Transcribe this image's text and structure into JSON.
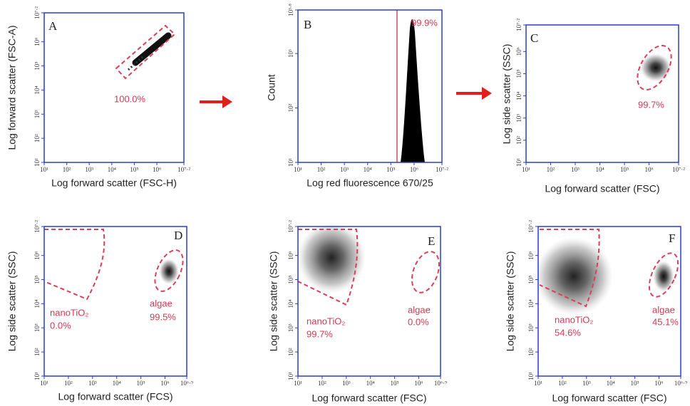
{
  "chart_data": [
    {
      "type": "scatter",
      "title": "A",
      "x_label": "Log forward scatter (FSC-H)",
      "y_label": "Log forward scatter (FSC-A)",
      "log": true,
      "xlim": [
        10,
        15848931.92
      ],
      "ylim": [
        10,
        15848931.92
      ],
      "xticks": [
        {
          "value": 10,
          "label": "10¹"
        },
        {
          "value": 100,
          "label": "10²"
        },
        {
          "value": 1000,
          "label": "10³"
        },
        {
          "value": 10000,
          "label": "10⁴"
        },
        {
          "value": 100000,
          "label": "10⁵"
        },
        {
          "value": 1000000,
          "label": "10⁶"
        },
        {
          "value": 15848931.92,
          "label": "10⁷·²"
        }
      ],
      "yticks": [
        {
          "value": 10,
          "label": "10¹"
        },
        {
          "value": 100,
          "label": "10²"
        },
        {
          "value": 1000,
          "label": "10³"
        },
        {
          "value": 10000,
          "label": "10⁴"
        },
        {
          "value": 100000,
          "label": "10⁵"
        },
        {
          "value": 1000000,
          "label": "10⁶"
        },
        {
          "value": 15848931.92,
          "label": "10⁷·²"
        }
      ],
      "annotations": [
        "100.0%"
      ]
    },
    {
      "type": "histogram",
      "title": "B",
      "x_label": "Log red fluorescence 670/25",
      "y_label": "Count",
      "log": true,
      "xlim": [
        10,
        15848931.92
      ],
      "ylim": [
        10,
        6309.57
      ],
      "xticks": [
        {
          "value": 10,
          "label": "10¹"
        },
        {
          "value": 100,
          "label": "10²"
        },
        {
          "value": 1000,
          "label": "10³"
        },
        {
          "value": 10000,
          "label": "10⁴"
        },
        {
          "value": 100000,
          "label": "10⁵"
        },
        {
          "value": 1000000,
          "label": "10⁶"
        },
        {
          "value": 15848931.92,
          "label": "10⁷·²"
        }
      ],
      "yticks": [
        {
          "value": 10,
          "label": "10¹"
        },
        {
          "value": 100,
          "label": "10²"
        },
        {
          "value": 1000,
          "label": "10³"
        },
        {
          "value": 6309.57,
          "label": "10³·⁸"
        }
      ],
      "annotations": [
        "99.9%"
      ]
    },
    {
      "type": "scatter",
      "title": "C",
      "x_label": "Log forward scatter (FSC)",
      "y_label": "Log side scatter (SSC)",
      "log": true,
      "xlim": [
        10,
        15848931.92
      ],
      "ylim": [
        10,
        15848931.92
      ],
      "xticks": [
        {
          "value": 10,
          "label": "10¹"
        },
        {
          "value": 100,
          "label": "10²"
        },
        {
          "value": 1000,
          "label": "10³"
        },
        {
          "value": 10000,
          "label": "10⁴"
        },
        {
          "value": 100000,
          "label": "10⁵"
        },
        {
          "value": 1000000,
          "label": "10⁶"
        },
        {
          "value": 15848931.92,
          "label": "10⁷·²"
        }
      ],
      "yticks": [
        {
          "value": 10,
          "label": "10¹"
        },
        {
          "value": 100,
          "label": "10²"
        },
        {
          "value": 1000,
          "label": "10³"
        },
        {
          "value": 10000,
          "label": "10⁴"
        },
        {
          "value": 100000,
          "label": "10⁵"
        },
        {
          "value": 1000000,
          "label": "10⁶"
        },
        {
          "value": 15848931.92,
          "label": "10⁷·²"
        }
      ],
      "annotations": [
        "99.7%"
      ]
    },
    {
      "type": "scatter",
      "title": "D",
      "x_label": "Log forward scatter (FCS)",
      "y_label": "Log side scatter (SSC)",
      "log": true,
      "xlim": [
        10,
        7943282.35
      ],
      "ylim": [
        10,
        15848931.92
      ],
      "xticks": [
        {
          "value": 10,
          "label": "10¹"
        },
        {
          "value": 100,
          "label": "10²"
        },
        {
          "value": 1000,
          "label": "10³"
        },
        {
          "value": 10000,
          "label": "10⁴"
        },
        {
          "value": 100000,
          "label": "10⁵"
        },
        {
          "value": 1000000,
          "label": "10⁶"
        },
        {
          "value": 7943282.35,
          "label": "10⁶·⁹"
        }
      ],
      "yticks": [
        {
          "value": 10,
          "label": "10¹"
        },
        {
          "value": 100,
          "label": "10²"
        },
        {
          "value": 1000,
          "label": "10³"
        },
        {
          "value": 10000,
          "label": "10⁴"
        },
        {
          "value": 100000,
          "label": "10⁵"
        },
        {
          "value": 1000000,
          "label": "10⁶"
        },
        {
          "value": 15848931.92,
          "label": "10⁷·²"
        }
      ],
      "annotations": [
        "nanoTiO₂",
        "0.0%",
        "algae",
        "99.5%"
      ]
    },
    {
      "type": "scatter",
      "title": "E",
      "x_label": "Log forward scatter (FSC)",
      "y_label": "Log side scatter (SSC)",
      "log": true,
      "xlim": [
        10,
        7943282.35
      ],
      "ylim": [
        10,
        15848931.92
      ],
      "xticks": [
        {
          "value": 10,
          "label": "10¹"
        },
        {
          "value": 100,
          "label": "10²"
        },
        {
          "value": 1000,
          "label": "10³"
        },
        {
          "value": 10000,
          "label": "10⁴"
        },
        {
          "value": 100000,
          "label": "10⁵"
        },
        {
          "value": 1000000,
          "label": "10⁶"
        },
        {
          "value": 7943282.35,
          "label": "10⁶·⁹"
        }
      ],
      "yticks": [
        {
          "value": 10,
          "label": "10¹"
        },
        {
          "value": 100,
          "label": "10²"
        },
        {
          "value": 1000,
          "label": "10³"
        },
        {
          "value": 10000,
          "label": "10⁴"
        },
        {
          "value": 100000,
          "label": "10⁵"
        },
        {
          "value": 1000000,
          "label": "10⁶"
        },
        {
          "value": 15848931.92,
          "label": "10⁷·²"
        }
      ],
      "annotations": [
        "nanoTiO₂",
        "99.7%",
        "algae",
        "0.0%"
      ]
    },
    {
      "type": "scatter",
      "title": "F",
      "x_label": "Log forward scatter (FSC)",
      "y_label": "Log side scatter (SSC)",
      "log": true,
      "xlim": [
        10,
        7943282.35
      ],
      "ylim": [
        10,
        15848931.92
      ],
      "xticks": [
        {
          "value": 10,
          "label": "10¹"
        },
        {
          "value": 100,
          "label": "10²"
        },
        {
          "value": 1000,
          "label": "10³"
        },
        {
          "value": 10000,
          "label": "10⁴"
        },
        {
          "value": 100000,
          "label": "10⁵"
        },
        {
          "value": 1000000,
          "label": "10⁶"
        },
        {
          "value": 7943282.35,
          "label": "10⁶·⁹"
        }
      ],
      "yticks": [
        {
          "value": 10,
          "label": "10¹"
        },
        {
          "value": 100,
          "label": "10²"
        },
        {
          "value": 1000,
          "label": "10³"
        },
        {
          "value": 10000,
          "label": "10⁴"
        },
        {
          "value": 100000,
          "label": "10⁵"
        },
        {
          "value": 1000000,
          "label": "10⁶"
        },
        {
          "value": 15848931.92,
          "label": "10⁷·²"
        }
      ],
      "annotations": [
        "nanoTiO₂",
        "54.6%",
        "algae",
        "45.1%"
      ]
    }
  ]
}
